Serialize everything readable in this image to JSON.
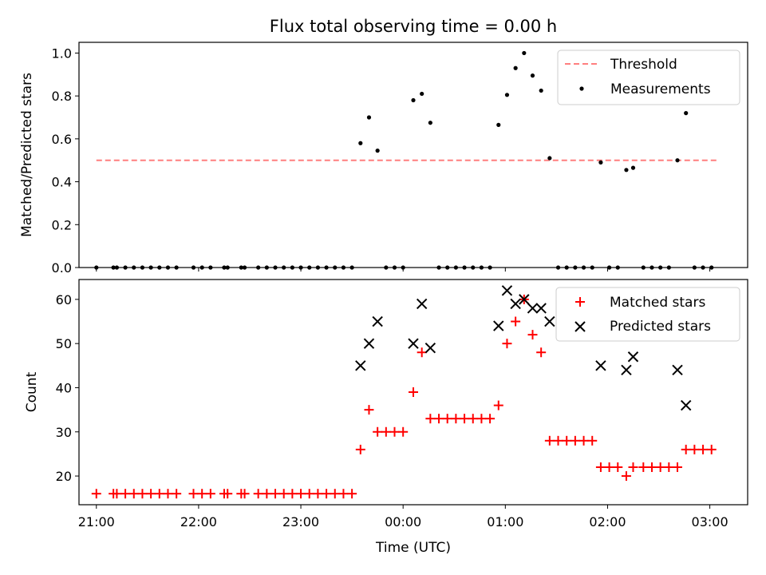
{
  "chart_data": {
    "title": "Flux total observing time = 0.00 h",
    "xlabel": "Time (UTC)",
    "x_ticks": [
      "21:00",
      "22:00",
      "23:00",
      "00:00",
      "01:00",
      "02:00",
      "03:00"
    ],
    "x_range_hours": [
      20.83,
      27.37
    ],
    "panels": [
      {
        "type": "scatter",
        "ylabel": "Matched/Predicted stars",
        "ylim": [
          0.0,
          1.05
        ],
        "y_ticks": [
          "0.0",
          "0.2",
          "0.4",
          "0.6",
          "0.8",
          "1.0"
        ],
        "legend_position": "upper-right",
        "threshold": {
          "name": "Threshold",
          "value": 0.5,
          "x_from": "21:00",
          "x_to": "03:05",
          "color": "#ff7f7f",
          "style": "dashed"
        },
        "series": [
          {
            "name": "Measurements",
            "color": "#000000",
            "marker": "dot",
            "points": [
              [
                "21:00",
                0.0
              ],
              [
                "21:10",
                0.0
              ],
              [
                "21:12",
                0.0
              ],
              [
                "21:17",
                0.0
              ],
              [
                "21:22",
                0.0
              ],
              [
                "21:27",
                0.0
              ],
              [
                "21:32",
                0.0
              ],
              [
                "21:37",
                0.0
              ],
              [
                "21:42",
                0.0
              ],
              [
                "21:47",
                0.0
              ],
              [
                "21:57",
                0.0
              ],
              [
                "22:02",
                0.0
              ],
              [
                "22:07",
                0.0
              ],
              [
                "22:15",
                0.0
              ],
              [
                "22:17",
                0.0
              ],
              [
                "22:25",
                0.0
              ],
              [
                "22:27",
                0.0
              ],
              [
                "22:35",
                0.0
              ],
              [
                "22:40",
                0.0
              ],
              [
                "22:45",
                0.0
              ],
              [
                "22:50",
                0.0
              ],
              [
                "22:55",
                0.0
              ],
              [
                "23:00",
                0.0
              ],
              [
                "23:05",
                0.0
              ],
              [
                "23:10",
                0.0
              ],
              [
                "23:15",
                0.0
              ],
              [
                "23:20",
                0.0
              ],
              [
                "23:25",
                0.0
              ],
              [
                "23:30",
                0.0
              ],
              [
                "23:35",
                0.58
              ],
              [
                "23:40",
                0.7
              ],
              [
                "23:45",
                0.545
              ],
              [
                "23:50",
                0.0
              ],
              [
                "23:55",
                0.0
              ],
              [
                "00:00",
                0.0
              ],
              [
                "00:06",
                0.78
              ],
              [
                "00:11",
                0.81
              ],
              [
                "00:16",
                0.675
              ],
              [
                "00:21",
                0.0
              ],
              [
                "00:26",
                0.0
              ],
              [
                "00:31",
                0.0
              ],
              [
                "00:36",
                0.0
              ],
              [
                "00:41",
                0.0
              ],
              [
                "00:46",
                0.0
              ],
              [
                "00:51",
                0.0
              ],
              [
                "00:56",
                0.665
              ],
              [
                "01:01",
                0.805
              ],
              [
                "01:06",
                0.93
              ],
              [
                "01:11",
                1.0
              ],
              [
                "01:16",
                0.895
              ],
              [
                "01:21",
                0.825
              ],
              [
                "01:26",
                0.51
              ],
              [
                "01:31",
                0.0
              ],
              [
                "01:36",
                0.0
              ],
              [
                "01:41",
                0.0
              ],
              [
                "01:46",
                0.0
              ],
              [
                "01:51",
                0.0
              ],
              [
                "01:56",
                0.49
              ],
              [
                "02:01",
                0.0
              ],
              [
                "02:06",
                0.0
              ],
              [
                "02:11",
                0.455
              ],
              [
                "02:15",
                0.465
              ],
              [
                "02:21",
                0.0
              ],
              [
                "02:26",
                0.0
              ],
              [
                "02:31",
                0.0
              ],
              [
                "02:36",
                0.0
              ],
              [
                "02:41",
                0.5
              ],
              [
                "02:46",
                0.72
              ],
              [
                "02:51",
                0.0
              ],
              [
                "02:56",
                0.0
              ],
              [
                "03:01",
                0.0
              ]
            ]
          }
        ]
      },
      {
        "type": "scatter",
        "ylabel": "Count",
        "ylim": [
          13.5,
          64.5
        ],
        "y_ticks": [
          "20",
          "30",
          "40",
          "50",
          "60"
        ],
        "legend_position": "upper-right",
        "series": [
          {
            "name": "Matched stars",
            "color": "#ff0000",
            "marker": "plus",
            "points": [
              [
                "21:00",
                16
              ],
              [
                "21:10",
                16
              ],
              [
                "21:12",
                16
              ],
              [
                "21:17",
                16
              ],
              [
                "21:22",
                16
              ],
              [
                "21:27",
                16
              ],
              [
                "21:32",
                16
              ],
              [
                "21:37",
                16
              ],
              [
                "21:42",
                16
              ],
              [
                "21:47",
                16
              ],
              [
                "21:57",
                16
              ],
              [
                "22:02",
                16
              ],
              [
                "22:07",
                16
              ],
              [
                "22:15",
                16
              ],
              [
                "22:17",
                16
              ],
              [
                "22:25",
                16
              ],
              [
                "22:27",
                16
              ],
              [
                "22:35",
                16
              ],
              [
                "22:40",
                16
              ],
              [
                "22:45",
                16
              ],
              [
                "22:50",
                16
              ],
              [
                "22:55",
                16
              ],
              [
                "23:00",
                16
              ],
              [
                "23:05",
                16
              ],
              [
                "23:10",
                16
              ],
              [
                "23:15",
                16
              ],
              [
                "23:20",
                16
              ],
              [
                "23:25",
                16
              ],
              [
                "23:30",
                16
              ],
              [
                "23:35",
                26
              ],
              [
                "23:40",
                35
              ],
              [
                "23:45",
                30
              ],
              [
                "23:50",
                30
              ],
              [
                "23:55",
                30
              ],
              [
                "00:00",
                30
              ],
              [
                "00:06",
                39
              ],
              [
                "00:11",
                48
              ],
              [
                "00:16",
                33
              ],
              [
                "00:21",
                33
              ],
              [
                "00:26",
                33
              ],
              [
                "00:31",
                33
              ],
              [
                "00:36",
                33
              ],
              [
                "00:41",
                33
              ],
              [
                "00:46",
                33
              ],
              [
                "00:51",
                33
              ],
              [
                "00:56",
                36
              ],
              [
                "01:01",
                50
              ],
              [
                "01:06",
                55
              ],
              [
                "01:11",
                60
              ],
              [
                "01:16",
                52
              ],
              [
                "01:21",
                48
              ],
              [
                "01:26",
                28
              ],
              [
                "01:31",
                28
              ],
              [
                "01:36",
                28
              ],
              [
                "01:41",
                28
              ],
              [
                "01:46",
                28
              ],
              [
                "01:51",
                28
              ],
              [
                "01:56",
                22
              ],
              [
                "02:01",
                22
              ],
              [
                "02:06",
                22
              ],
              [
                "02:11",
                20
              ],
              [
                "02:15",
                22
              ],
              [
                "02:21",
                22
              ],
              [
                "02:26",
                22
              ],
              [
                "02:31",
                22
              ],
              [
                "02:36",
                22
              ],
              [
                "02:41",
                22
              ],
              [
                "02:46",
                26
              ],
              [
                "02:51",
                26
              ],
              [
                "02:56",
                26
              ],
              [
                "03:01",
                26
              ]
            ]
          },
          {
            "name": "Predicted stars",
            "color": "#000000",
            "marker": "x",
            "points": [
              [
                "23:35",
                45
              ],
              [
                "23:40",
                50
              ],
              [
                "23:45",
                55
              ],
              [
                "00:06",
                50
              ],
              [
                "00:11",
                59
              ],
              [
                "00:16",
                49
              ],
              [
                "00:56",
                54
              ],
              [
                "01:01",
                62
              ],
              [
                "01:06",
                59
              ],
              [
                "01:11",
                60
              ],
              [
                "01:16",
                58
              ],
              [
                "01:21",
                58
              ],
              [
                "01:26",
                55
              ],
              [
                "01:56",
                45
              ],
              [
                "02:11",
                44
              ],
              [
                "02:15",
                47
              ],
              [
                "02:41",
                44
              ],
              [
                "02:46",
                36
              ]
            ]
          }
        ]
      }
    ]
  }
}
